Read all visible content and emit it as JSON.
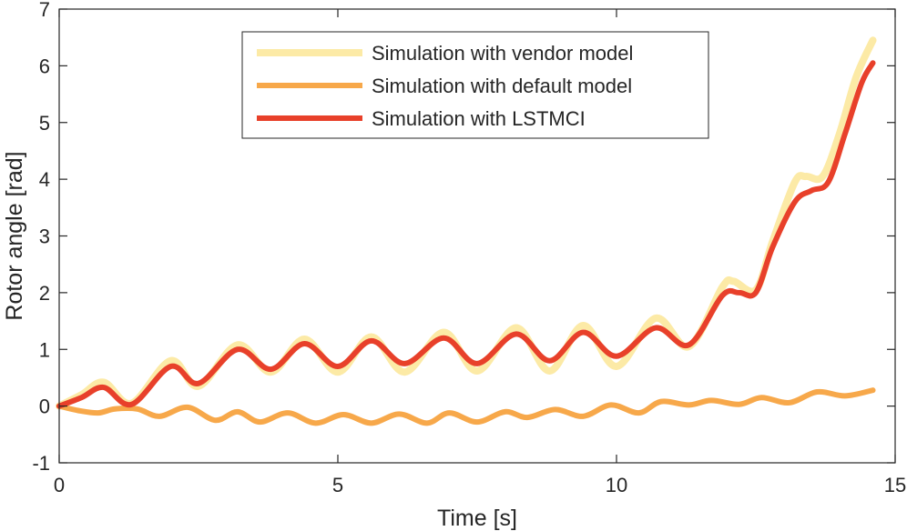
{
  "chart_data": {
    "type": "line",
    "title": "",
    "xlabel": "Time [s]",
    "ylabel": "Rotor angle [rad]",
    "xlim": [
      0,
      15
    ],
    "ylim": [
      -1,
      7
    ],
    "xticks": [
      0,
      5,
      10,
      15
    ],
    "yticks": [
      -1,
      0,
      1,
      2,
      3,
      4,
      5,
      6,
      7
    ],
    "grid": false,
    "legend_position": "top-right",
    "series": [
      {
        "name": "Simulation with vendor model",
        "color": "#FCEAA6",
        "x": [
          0,
          0.4,
          0.8,
          1.3,
          2.0,
          2.5,
          3.2,
          3.8,
          4.4,
          5.0,
          5.6,
          6.2,
          6.9,
          7.5,
          8.2,
          8.8,
          9.4,
          10.0,
          10.7,
          11.3,
          11.9,
          12.1,
          12.5,
          12.8,
          13.2,
          13.4,
          13.7,
          14.0,
          14.3,
          14.6
        ],
        "y": [
          0,
          0.2,
          0.42,
          0.05,
          0.8,
          0.35,
          1.08,
          0.6,
          1.18,
          0.6,
          1.22,
          0.6,
          1.3,
          0.62,
          1.38,
          0.62,
          1.42,
          0.7,
          1.55,
          1.05,
          2.1,
          2.2,
          2.05,
          2.9,
          3.95,
          4.05,
          4.05,
          4.8,
          5.8,
          6.45
        ]
      },
      {
        "name": "Simulation with default model",
        "color": "#F7A84A",
        "x": [
          0,
          0.35,
          0.7,
          1.0,
          1.4,
          1.8,
          2.3,
          2.8,
          3.2,
          3.6,
          4.1,
          4.6,
          5.1,
          5.6,
          6.1,
          6.6,
          7.0,
          7.5,
          8.0,
          8.4,
          8.9,
          9.4,
          9.9,
          10.4,
          10.8,
          11.3,
          11.7,
          12.2,
          12.6,
          13.1,
          13.6,
          14.1,
          14.6
        ],
        "y": [
          0,
          -0.08,
          -0.12,
          -0.05,
          -0.05,
          -0.18,
          -0.02,
          -0.25,
          -0.1,
          -0.28,
          -0.12,
          -0.3,
          -0.15,
          -0.3,
          -0.14,
          -0.3,
          -0.12,
          -0.28,
          -0.1,
          -0.2,
          -0.06,
          -0.18,
          0.02,
          -0.12,
          0.08,
          0.02,
          0.1,
          0.03,
          0.15,
          0.06,
          0.25,
          0.18,
          0.28
        ]
      },
      {
        "name": "Simulation with LSTMCI",
        "color": "#E8402A",
        "x": [
          0,
          0.4,
          0.8,
          1.3,
          2.0,
          2.5,
          3.2,
          3.8,
          4.4,
          5.0,
          5.6,
          6.2,
          6.9,
          7.5,
          8.2,
          8.8,
          9.4,
          10.0,
          10.7,
          11.3,
          11.9,
          12.2,
          12.5,
          12.8,
          13.2,
          13.5,
          13.8,
          14.1,
          14.4,
          14.6
        ],
        "y": [
          0,
          0.15,
          0.33,
          0.03,
          0.7,
          0.4,
          1.0,
          0.65,
          1.1,
          0.7,
          1.15,
          0.75,
          1.2,
          0.75,
          1.27,
          0.8,
          1.3,
          0.88,
          1.38,
          1.08,
          1.95,
          2.0,
          2.0,
          2.8,
          3.6,
          3.8,
          3.95,
          4.8,
          5.7,
          6.05
        ]
      }
    ],
    "legend": {
      "entries": [
        "Simulation with vendor model",
        "Simulation with default model",
        "Simulation with LSTMCI"
      ]
    }
  }
}
